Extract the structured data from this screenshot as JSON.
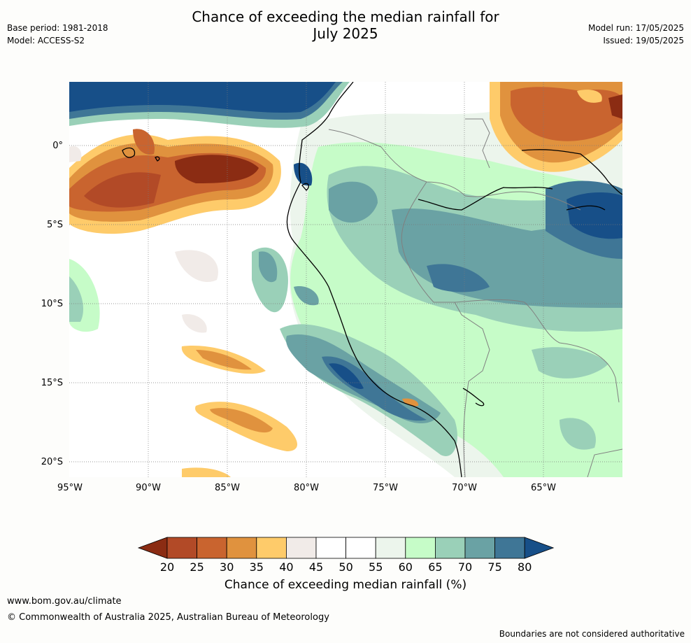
{
  "header": {
    "title_line1": "Chance of exceeding the median rainfall for",
    "title_line2": "July 2025",
    "base_period": "Base period: 1981-2018",
    "model": "Model: ACCESS-S2",
    "model_run": "Model run: 17/05/2025",
    "issued": "Issued: 19/05/2025"
  },
  "map": {
    "lat_labels": [
      "0°",
      "5°S",
      "10°S",
      "15°S",
      "20°S"
    ],
    "lon_labels": [
      "95°W",
      "90°W",
      "85°W",
      "80°W",
      "75°W",
      "70°W",
      "65°W"
    ],
    "lat_values": [
      0,
      -5,
      -10,
      -15,
      -20
    ],
    "lon_values": [
      -95,
      -90,
      -85,
      -80,
      -75,
      -70,
      -65
    ]
  },
  "colorbar": {
    "ticks": [
      "20",
      "25",
      "30",
      "35",
      "40",
      "45",
      "50",
      "55",
      "60",
      "65",
      "70",
      "75",
      "80"
    ],
    "colors": [
      "#8b2c13",
      "#b24a27",
      "#c9642f",
      "#e0923e",
      "#fecb6a",
      "#f1ebe8",
      "#ffffff",
      "#ffffff",
      "#ecf5ec",
      "#c6fcc8",
      "#9ad0b8",
      "#6aa2a4",
      "#3f7696",
      "#174f88"
    ],
    "label": "Chance of exceeding median rainfall (%)"
  },
  "footer": {
    "url": "www.bom.gov.au/climate",
    "copyright": "© Commonwealth of Australia 2025, Australian Bureau of Meteorology",
    "disclaimer": "Boundaries are not considered authoritative"
  }
}
